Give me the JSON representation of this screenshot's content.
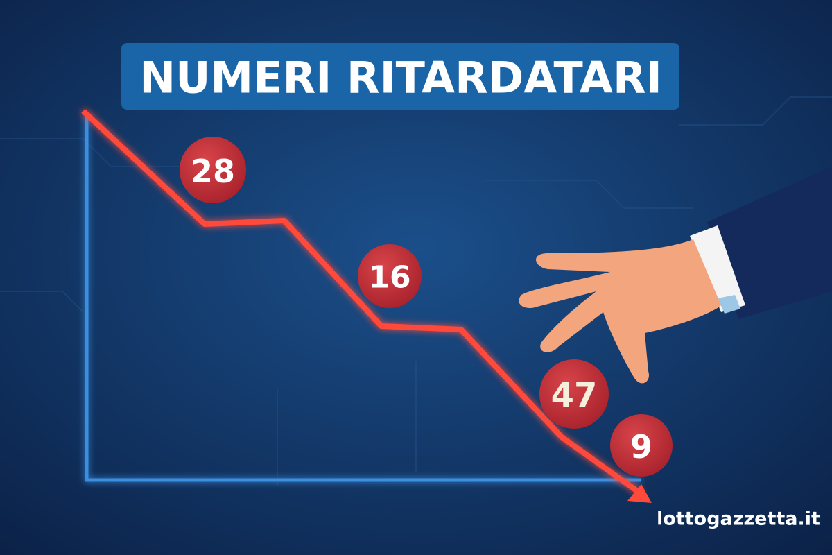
{
  "header": {
    "title": "NUMERI RITARDATARI"
  },
  "balls": [
    {
      "number": 28
    },
    {
      "number": 16
    },
    {
      "number": 47
    },
    {
      "number": 9
    }
  ],
  "footer": {
    "site": "lottogazzetta.it"
  }
}
